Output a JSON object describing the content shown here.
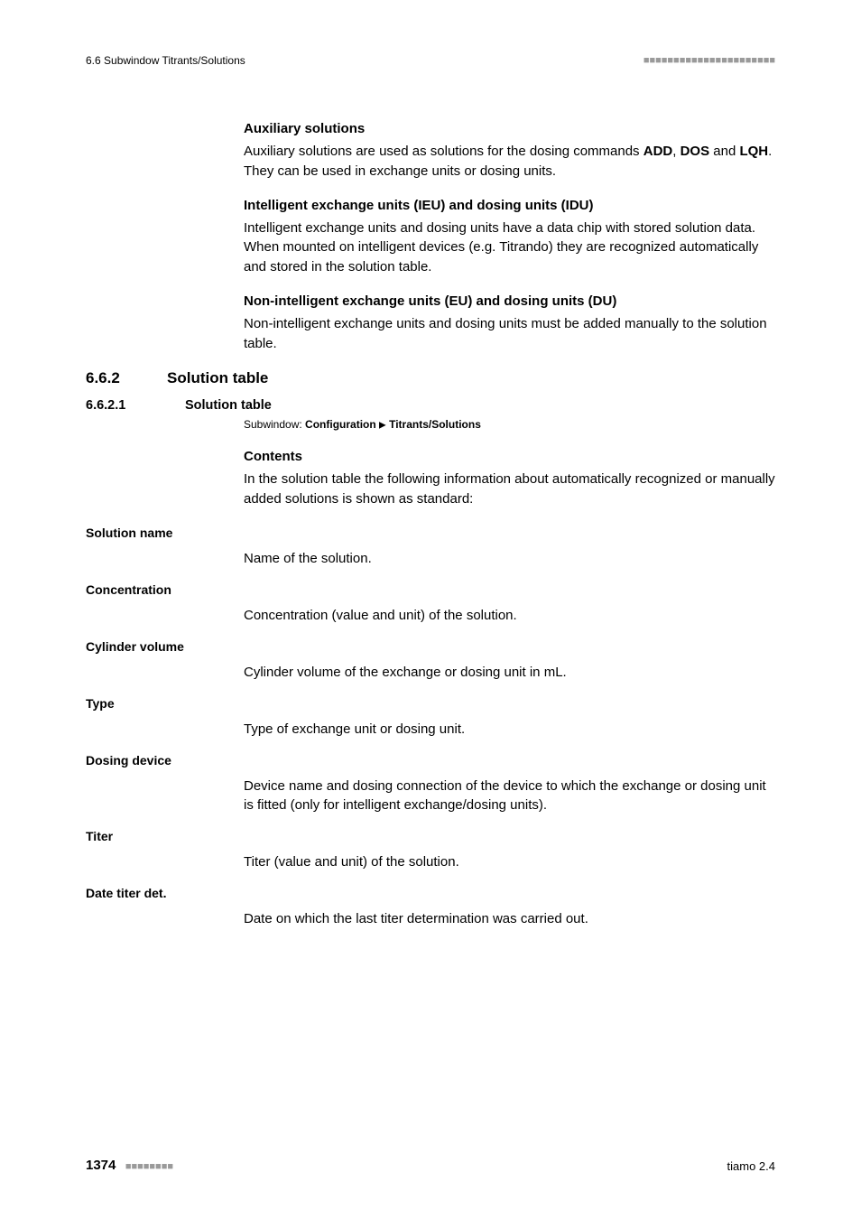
{
  "header": {
    "left": "6.6 Subwindow Titrants/Solutions",
    "right_dots": "■■■■■■■■■■■■■■■■■■■■■■"
  },
  "aux": {
    "heading": "Auxiliary solutions",
    "p_prefix": "Auxiliary solutions are used as solutions for the dosing commands ",
    "add": "ADD",
    "sep1": ", ",
    "dos": "DOS",
    "sep2": " and ",
    "lqh": "LQH",
    "p_suffix": ". They can be used in exchange units or dosing units."
  },
  "ieu": {
    "heading": "Intelligent exchange units (IEU) and dosing units (IDU)",
    "para": "Intelligent exchange units and dosing units have a data chip with stored solution data. When mounted on intelligent devices (e.g. Titrando) they are recognized automatically and stored in the solution table."
  },
  "nonint": {
    "heading": "Non-intelligent exchange units (EU) and dosing units (DU)",
    "para": "Non-intelligent exchange units and dosing units must be added manually to the solution table."
  },
  "sec": {
    "num": "6.6.2",
    "title": "Solution table"
  },
  "subsec": {
    "num": "6.6.2.1",
    "title": "Solution table"
  },
  "subwindow": {
    "label": "Subwindow: ",
    "path1": "Configuration",
    "path2": "Titrants/Solutions"
  },
  "contents": {
    "heading": "Contents",
    "para": "In the solution table the following information about automatically recognized or manually added solutions is shown as standard:"
  },
  "fields": {
    "solution_name": {
      "label": "Solution name",
      "desc": "Name of the solution."
    },
    "concentration": {
      "label": "Concentration",
      "desc": "Concentration (value and unit) of the solution."
    },
    "cylinder_volume": {
      "label": "Cylinder volume",
      "desc": "Cylinder volume of the exchange or dosing unit in mL."
    },
    "type": {
      "label": "Type",
      "desc": "Type of exchange unit or dosing unit."
    },
    "dosing_device": {
      "label": "Dosing device",
      "desc": "Device name and dosing connection of the device to which the exchange or dosing unit is fitted (only for intelligent exchange/dosing units)."
    },
    "titer": {
      "label": "Titer",
      "desc": "Titer (value and unit) of the solution."
    },
    "date_titer": {
      "label": "Date titer det.",
      "desc": "Date on which the last titer determination was carried out."
    }
  },
  "footer": {
    "page": "1374",
    "dots": "■■■■■■■■",
    "right": "tiamo 2.4"
  }
}
